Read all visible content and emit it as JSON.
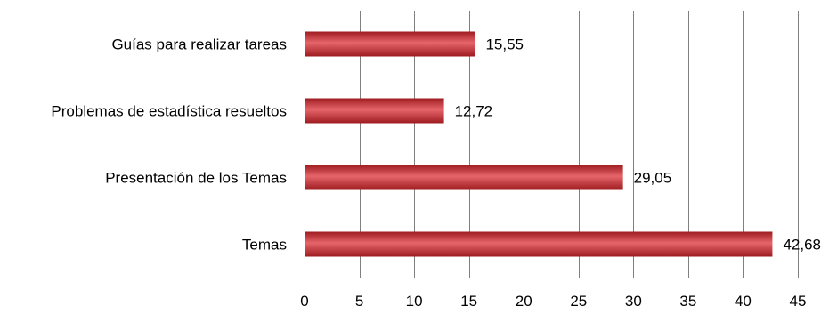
{
  "chart_data": {
    "type": "bar",
    "orientation": "horizontal",
    "title": "",
    "xlabel": "",
    "ylabel": "",
    "categories": [
      "Guías para realizar tareas",
      "Problemas de estadística resueltos",
      "Presentación de los Temas",
      "Temas"
    ],
    "values": [
      15.55,
      12.72,
      29.05,
      42.68
    ],
    "value_labels": [
      "15,55",
      "12,72",
      "29,05",
      "42,68"
    ],
    "xlim": [
      0,
      45
    ],
    "xticks": [
      0,
      5,
      10,
      15,
      20,
      25,
      30,
      35,
      40,
      45
    ],
    "xtick_labels": [
      "0",
      "5",
      "10",
      "15",
      "20",
      "25",
      "30",
      "35",
      "40",
      "45"
    ],
    "grid": "vertical",
    "legend": "none",
    "colors": {
      "bar": "#c0262b",
      "bar_light": "#e6656a",
      "bar_dark": "#9e1c20",
      "grid": "#808080"
    }
  }
}
